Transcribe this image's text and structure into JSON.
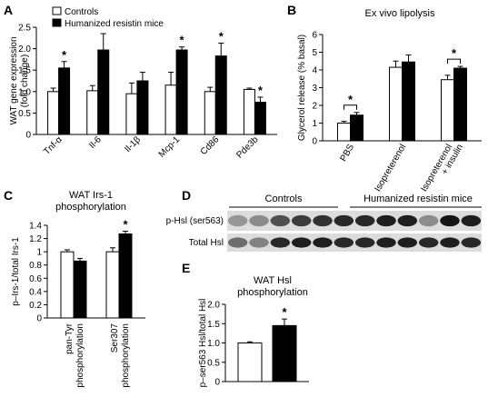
{
  "panel_labels": {
    "a": "A",
    "b": "B",
    "c": "C",
    "d": "D",
    "e": "E"
  },
  "sig_marker": "*",
  "colors": {
    "control": "#ffffff",
    "resistin": "#000000",
    "stroke": "#000000"
  },
  "chart_data": [
    {
      "panel": "A",
      "type": "bar",
      "title": "",
      "ylabel": "WAT gene expression (fold change)",
      "ylabel_lines": [
        "WAT gene expression",
        "(fold change)"
      ],
      "ylim": [
        0,
        2.5
      ],
      "yticks": [
        "0",
        "0.5",
        "1.0",
        "1.5",
        "2.0",
        "2.5"
      ],
      "categories": [
        "Tnf-α",
        "Il-6",
        "Il-1β",
        "Mcp-1",
        "Cd86",
        "Pde3b"
      ],
      "legend": [
        "Controls",
        "Humanized resistin mice"
      ],
      "series": [
        {
          "name": "Controls",
          "values": [
            1.0,
            1.02,
            0.95,
            1.15,
            1.0,
            1.05
          ],
          "errors": [
            0.08,
            0.12,
            0.25,
            0.3,
            0.1,
            0.03
          ]
        },
        {
          "name": "Humanized resistin mice",
          "values": [
            1.55,
            1.97,
            1.25,
            1.97,
            1.83,
            0.75
          ],
          "errors": [
            0.15,
            0.38,
            0.2,
            0.07,
            0.3,
            0.12
          ]
        }
      ],
      "significant": [
        true,
        false,
        false,
        true,
        true,
        true
      ]
    },
    {
      "panel": "B",
      "type": "bar",
      "title": "Ex vivo lipolysis",
      "ylabel": "Glycerol release (% basal)",
      "ylim": [
        0,
        6
      ],
      "yticks": [
        "0",
        "1",
        "2",
        "3",
        "4",
        "5",
        "6"
      ],
      "categories": [
        "PBS",
        "Isopreterenol",
        "Isopreterenol + insulin"
      ],
      "category_lines": [
        [
          "PBS"
        ],
        [
          "Isopreterenol"
        ],
        [
          "Isopreterenol",
          "+ insulin"
        ]
      ],
      "series": [
        {
          "name": "Controls",
          "values": [
            1.0,
            4.15,
            3.45
          ],
          "errors": [
            0.1,
            0.35,
            0.25
          ]
        },
        {
          "name": "Humanized resistin mice",
          "values": [
            1.45,
            4.45,
            4.1
          ],
          "errors": [
            0.15,
            0.4,
            0.1
          ]
        }
      ],
      "brackets": [
        [
          0
        ],
        [
          2
        ]
      ]
    },
    {
      "panel": "C",
      "type": "bar",
      "title": "WAT Irs-1 phosphorylation",
      "title_lines": [
        "WAT Irs-1",
        "phosphorylation"
      ],
      "ylabel": "p–Irs-1/total Irs-1",
      "ylim": [
        0,
        1.4
      ],
      "yticks": [
        "0",
        "0.2",
        "0.4",
        "0.6",
        "0.8",
        "1",
        "1.2",
        "1.4"
      ],
      "categories": [
        "pan-Tyr phosphorylation",
        "Ser307 phosphorylation"
      ],
      "category_lines": [
        [
          "pan-Tyr",
          "phosphorylation"
        ],
        [
          "Ser307",
          "phosphorylation"
        ]
      ],
      "series": [
        {
          "name": "Controls",
          "values": [
            1.0,
            1.0
          ],
          "errors": [
            0.03,
            0.06
          ]
        },
        {
          "name": "Humanized resistin mice",
          "values": [
            0.86,
            1.27
          ],
          "errors": [
            0.04,
            0.04
          ]
        }
      ],
      "significant": [
        false,
        true
      ]
    },
    {
      "panel": "E",
      "type": "bar",
      "title": "WAT Hsl phosphorylation",
      "title_lines": [
        "WAT Hsl",
        "phosphorylation"
      ],
      "ylabel": "p–ser563 Hsl/total Hsl",
      "ylim": [
        0,
        2.0
      ],
      "yticks": [
        "0",
        "0.5",
        "1.0",
        "1.5",
        "2.0"
      ],
      "series": [
        {
          "name": "Controls",
          "values": [
            1.0
          ],
          "errors": [
            0.03
          ]
        },
        {
          "name": "Humanized resistin mice",
          "values": [
            1.45
          ],
          "errors": [
            0.17
          ]
        }
      ],
      "significant": [
        true
      ]
    }
  ],
  "blot": {
    "panel": "D",
    "group_labels": [
      "Controls",
      "Humanized resistin mice"
    ],
    "row_labels": [
      "p-Hsl (ser563)",
      "Total Hsl"
    ],
    "lanes": {
      "phospho": [
        0.35,
        0.4,
        0.7,
        0.8,
        0.85,
        0.9,
        0.9,
        0.95,
        0.95,
        0.4,
        1.0,
        0.95
      ],
      "total": [
        0.55,
        0.45,
        0.9,
        0.95,
        0.95,
        0.9,
        0.9,
        0.95,
        0.95,
        0.9,
        0.95,
        0.9
      ]
    }
  }
}
